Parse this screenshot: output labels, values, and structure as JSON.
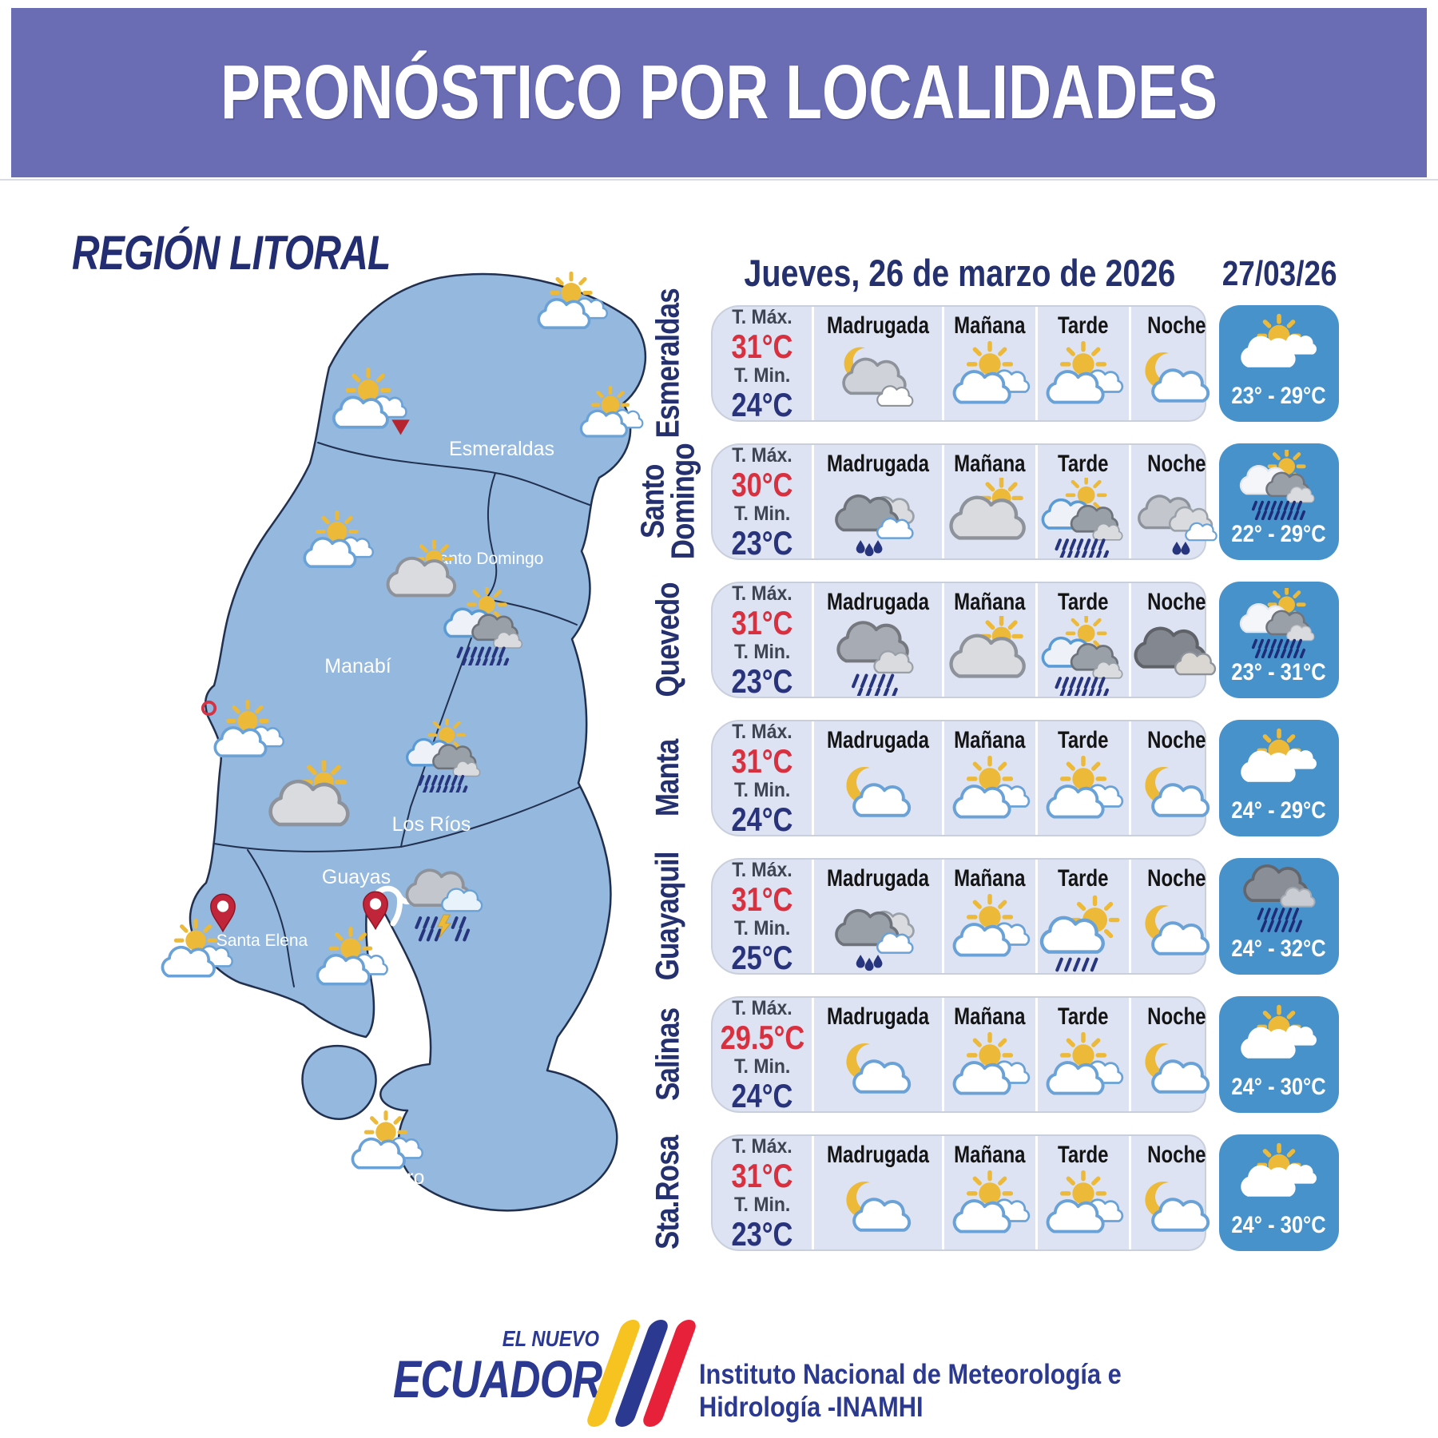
{
  "header": {
    "title": "PRONÓSTICO POR LOCALIDADES"
  },
  "region": {
    "title": "REGIÓN LITORAL"
  },
  "table": {
    "date_heading": "Jueves, 26 de marzo de 2026",
    "next_date": "27/03/26",
    "tmax_label": "T. Máx.",
    "tmin_label": "T. Min.",
    "period_headers": [
      "Madrugada",
      "Mañana",
      "Tarde",
      "Noche"
    ]
  },
  "rows": [
    {
      "name": "Esmeraldas",
      "tmax": "31°C",
      "tmin": "24°C",
      "periods": [
        {
          "icon": "night-cloudy"
        },
        {
          "icon": "partly-sunny"
        },
        {
          "icon": "partly-sunny"
        },
        {
          "icon": "night-partly"
        }
      ],
      "next": {
        "icon": "sun-clouds-big",
        "range": "23° - 29°C"
      }
    },
    {
      "name": "Santo\nDomingo",
      "tmax": "30°C",
      "tmin": "23°C",
      "periods": [
        {
          "icon": "clouds-drizzle"
        },
        {
          "icon": "cloud-sun-peek"
        },
        {
          "icon": "sun-clouds-rain"
        },
        {
          "icon": "clouds-drizzle-light"
        }
      ],
      "next": {
        "icon": "sun-clouds-rain-big",
        "range": "22° - 29°C"
      }
    },
    {
      "name": "Quevedo",
      "tmax": "31°C",
      "tmin": "23°C",
      "periods": [
        {
          "icon": "cloud-rain"
        },
        {
          "icon": "cloud-sun-peek"
        },
        {
          "icon": "sun-clouds-rain"
        },
        {
          "icon": "dark-clouds"
        }
      ],
      "next": {
        "icon": "sun-clouds-rain-big",
        "range": "23° - 31°C"
      }
    },
    {
      "name": "Manta",
      "tmax": "31°C",
      "tmin": "24°C",
      "periods": [
        {
          "icon": "night-partly"
        },
        {
          "icon": "partly-sunny"
        },
        {
          "icon": "partly-sunny"
        },
        {
          "icon": "night-partly"
        }
      ],
      "next": {
        "icon": "sun-clouds-big",
        "range": "24° - 29°C"
      }
    },
    {
      "name": "Guayaquil",
      "tmax": "31°C",
      "tmin": "25°C",
      "periods": [
        {
          "icon": "clouds-drizzle"
        },
        {
          "icon": "partly-sunny"
        },
        {
          "icon": "sun-rain"
        },
        {
          "icon": "night-partly"
        }
      ],
      "next": {
        "icon": "rain-heavy",
        "range": "24° - 32°C"
      }
    },
    {
      "name": "Salinas",
      "tmax": "29.5°C",
      "tmin": "24°C",
      "periods": [
        {
          "icon": "night-partly"
        },
        {
          "icon": "partly-sunny"
        },
        {
          "icon": "partly-sunny"
        },
        {
          "icon": "night-partly"
        }
      ],
      "next": {
        "icon": "sun-clouds-big",
        "range": "24° - 30°C"
      }
    },
    {
      "name": "Sta.Rosa",
      "tmax": "31°C",
      "tmin": "23°C",
      "periods": [
        {
          "icon": "night-partly"
        },
        {
          "icon": "partly-sunny"
        },
        {
          "icon": "partly-sunny"
        },
        {
          "icon": "night-partly"
        }
      ],
      "next": {
        "icon": "sun-clouds-big",
        "range": "24° - 30°C"
      }
    }
  ],
  "map": {
    "provinces": [
      "Esmeraldas",
      "Santo Domingo",
      "Manabí",
      "Los Ríos",
      "Guayas",
      "Santa Elena",
      "El Oro"
    ],
    "icons": [
      {
        "icon": "partly-sunny"
      },
      {
        "icon": "partly-sunny"
      },
      {
        "icon": "red-triangle"
      },
      {
        "icon": "partly-sunny"
      },
      {
        "icon": "partly-sunny"
      },
      {
        "icon": "cloud-sun-peek"
      },
      {
        "icon": "sun-clouds-rain"
      },
      {
        "icon": "red-ring"
      },
      {
        "icon": "partly-sunny"
      },
      {
        "icon": "cloud-sun-peek"
      },
      {
        "icon": "sun-clouds-rain"
      },
      {
        "icon": "storm-lightning"
      },
      {
        "icon": "red-pin"
      },
      {
        "icon": "partly-sunny"
      },
      {
        "icon": "red-pin"
      },
      {
        "icon": "partly-sunny"
      },
      {
        "icon": "partly-sunny"
      }
    ]
  },
  "footer": {
    "brand_top": "EL NUEVO",
    "brand_main": "ECUADOR",
    "org_line1": "Instituto Nacional de Meteorología e",
    "org_line2": "Hidrología -INAMHI"
  },
  "colors": {
    "header_purple": "#6a6cb4",
    "navy": "#25306e",
    "temp_red": "#d8303f",
    "map_blue": "#94b8de",
    "row_bg": "#dde3f2",
    "box_blue": "#4792cb",
    "sun_yellow": "#ecb939",
    "rain_navy": "#27357e",
    "stripe_yellow": "#f6c320",
    "stripe_blue": "#2b3990",
    "stripe_red": "#e8213a"
  }
}
